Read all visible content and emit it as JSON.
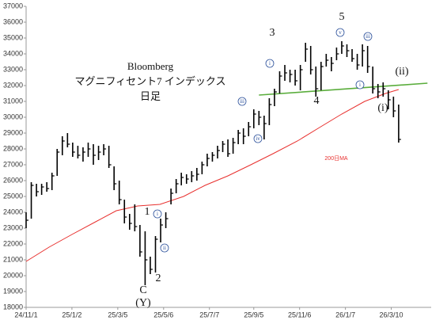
{
  "chart_data": {
    "type": "ohlc",
    "title": "Bloomberg",
    "subtitle": "マグニフィセント7 インデックス",
    "period": "日足",
    "color": "#000000",
    "x": [
      "24/11/1",
      "24/11/8",
      "24/11/15",
      "24/11/22",
      "24/11/29",
      "24/12/6",
      "24/12/13",
      "24/12/20",
      "24/12/27",
      "25/1/3",
      "25/1/10",
      "25/1/17",
      "25/1/24",
      "25/1/31",
      "25/2/7",
      "25/2/14",
      "25/2/21",
      "25/2/28",
      "25/3/7",
      "25/3/14",
      "25/3/21",
      "25/3/28",
      "25/4/4",
      "25/4/11",
      "25/4/18",
      "25/4/25",
      "25/5/2",
      "25/5/9",
      "25/5/16",
      "25/5/23",
      "25/5/30",
      "25/6/6",
      "25/6/13",
      "25/6/20",
      "25/6/27",
      "25/7/4",
      "25/7/11",
      "25/7/18",
      "25/7/25",
      "25/8/1",
      "25/8/8",
      "25/8/15",
      "25/8/22",
      "25/8/29",
      "25/9/5",
      "25/9/12",
      "25/9/19",
      "25/9/26",
      "25/10/3",
      "25/10/10",
      "25/10/17",
      "25/10/24",
      "25/10/31",
      "25/11/7",
      "25/11/14",
      "25/11/21",
      "25/11/28",
      "25/12/5",
      "25/12/12",
      "25/12/19",
      "25/12/26",
      "26/1/2",
      "26/1/9",
      "26/1/16",
      "26/1/23",
      "26/1/30",
      "26/2/6",
      "26/2/13",
      "26/2/20",
      "26/2/27",
      "26/3/6",
      "26/3/13",
      "26/3/20"
    ],
    "high": [
      24000,
      25900,
      25800,
      25800,
      25900,
      26500,
      28000,
      28800,
      29000,
      28400,
      28200,
      28100,
      28400,
      28300,
      28200,
      28300,
      28200,
      26900,
      26000,
      24800,
      23900,
      24500,
      23200,
      22800,
      21200,
      22500,
      23600,
      24000,
      25500,
      26100,
      26500,
      26400,
      26600,
      26800,
      27200,
      27700,
      27800,
      28200,
      28500,
      28600,
      28700,
      29200,
      29300,
      29700,
      30500,
      30400,
      30100,
      31200,
      31800,
      32900,
      33300,
      33000,
      33000,
      33300,
      34700,
      34500,
      33200,
      33500,
      34000,
      33800,
      34400,
      34800,
      34600,
      34300,
      34000,
      34600,
      34500,
      33200,
      32100,
      32200,
      31700,
      31300,
      30800
    ],
    "low": [
      23000,
      23600,
      25000,
      25100,
      25300,
      25400,
      26300,
      27600,
      28100,
      27500,
      27400,
      27200,
      27500,
      27000,
      27300,
      27600,
      26800,
      25400,
      24500,
      23300,
      22900,
      22800,
      21200,
      19400,
      20100,
      20200,
      22100,
      23000,
      24500,
      25200,
      25700,
      25800,
      25900,
      26000,
      26400,
      26900,
      27200,
      27400,
      27800,
      27500,
      27700,
      28300,
      28300,
      28800,
      29300,
      29500,
      28600,
      29500,
      30700,
      31500,
      32300,
      32200,
      32000,
      31700,
      33500,
      32700,
      31300,
      31700,
      33200,
      32900,
      33600,
      34000,
      33800,
      33500,
      33000,
      33200,
      32800,
      31500,
      31200,
      31300,
      30500,
      30000,
      28400
    ],
    "close": [
      23500,
      25700,
      25300,
      25600,
      25500,
      26300,
      27800,
      28500,
      28300,
      27800,
      27600,
      27800,
      28000,
      27600,
      27800,
      28000,
      27000,
      25800,
      24800,
      23700,
      23300,
      23100,
      21500,
      21000,
      20400,
      22300,
      23200,
      23600,
      25200,
      25800,
      26200,
      26100,
      26300,
      26400,
      27000,
      27400,
      27600,
      27900,
      28300,
      27700,
      28400,
      29000,
      28800,
      29400,
      30200,
      30000,
      29600,
      30800,
      31600,
      32600,
      32800,
      32700,
      32300,
      33000,
      34300,
      33000,
      31800,
      33200,
      33600,
      33400,
      34000,
      34500,
      34200,
      33700,
      33300,
      34200,
      33200,
      31800,
      31600,
      31800,
      31100,
      30400,
      28600
    ],
    "ma": {
      "name": "200日MA",
      "color": "#e8302e",
      "x": [
        "24/11/1",
        "24/12/2",
        "25/1/2",
        "25/2/3",
        "25/3/3",
        "25/4/1",
        "25/5/1",
        "25/6/2",
        "25/7/1",
        "25/8/1",
        "25/9/1",
        "25/10/1",
        "25/11/3",
        "25/12/1",
        "26/1/2",
        "26/2/2",
        "26/3/2",
        "26/3/20"
      ],
      "values": [
        20900,
        21800,
        22600,
        23400,
        24100,
        24400,
        24500,
        25000,
        25700,
        26300,
        27000,
        27700,
        28500,
        29300,
        30200,
        31000,
        31500,
        31750
      ]
    },
    "trendline": {
      "color": "#5aad3c",
      "x": [
        "25/9/12",
        "26/4/28"
      ],
      "values": [
        31400,
        32150
      ]
    },
    "annotations": [
      "5",
      "3",
      "4",
      "1",
      "2",
      "C",
      "(Y)",
      "(ii)",
      "(i)"
    ],
    "wave_marks": [
      "iii",
      "iv",
      "i",
      "v",
      "i",
      "iii",
      "i",
      "ii"
    ],
    "xlim": [
      "24/11/1",
      "26/5/3"
    ],
    "xticks": [
      "24/11/1",
      "25/1/2",
      "25/3/5",
      "25/5/6",
      "25/7/7",
      "25/9/5",
      "25/11/6",
      "26/1/7",
      "26/3/10"
    ],
    "ylim": [
      18000,
      37000
    ],
    "yticks": [
      18000,
      19000,
      20000,
      21000,
      22000,
      23000,
      24000,
      25000,
      26000,
      27000,
      28000,
      29000,
      30000,
      31000,
      32000,
      33000,
      34000,
      35000,
      36000,
      37000
    ]
  }
}
